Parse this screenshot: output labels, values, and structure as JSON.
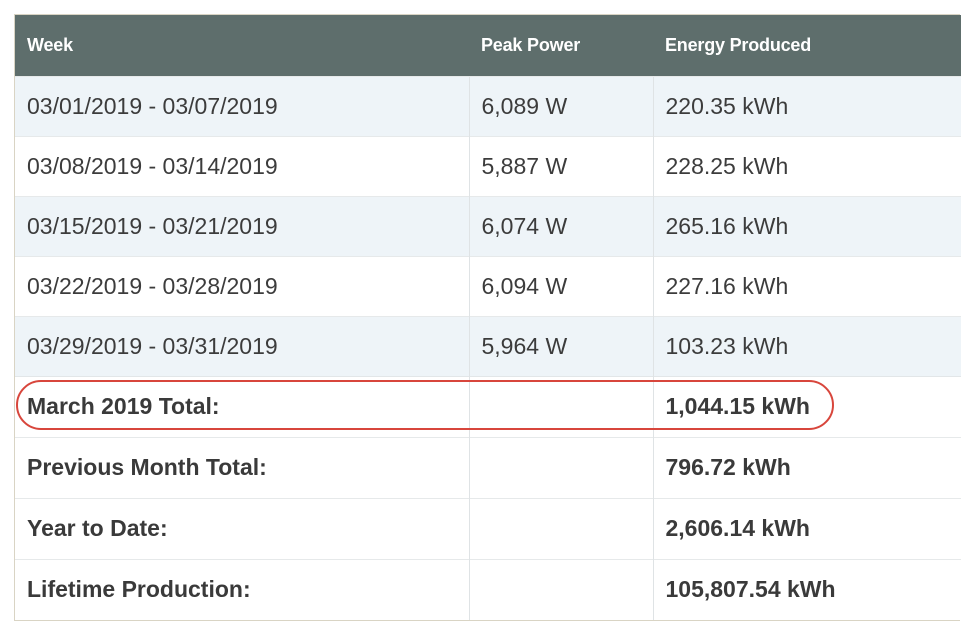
{
  "headers": [
    "Week",
    "Peak Power",
    "Energy Produced"
  ],
  "weeks": [
    {
      "week": "03/01/2019 - 03/07/2019",
      "peak_power": "6,089 W",
      "energy": "220.35 kWh"
    },
    {
      "week": "03/08/2019 - 03/14/2019",
      "peak_power": "5,887 W",
      "energy": "228.25 kWh"
    },
    {
      "week": "03/15/2019 - 03/21/2019",
      "peak_power": "6,074 W",
      "energy": "265.16 kWh"
    },
    {
      "week": "03/22/2019 - 03/28/2019",
      "peak_power": "6,094 W",
      "energy": "227.16 kWh"
    },
    {
      "week": "03/29/2019 - 03/31/2019",
      "peak_power": "5,964 W",
      "energy": "103.23 kWh"
    }
  ],
  "totals": [
    {
      "label": "March 2019 Total:",
      "value": "1,044.15 kWh"
    },
    {
      "label": "Previous Month Total:",
      "value": "796.72 kWh"
    },
    {
      "label": "Year to Date:",
      "value": "2,606.14 kWh"
    },
    {
      "label": "Lifetime Production:",
      "value": "105,807.54 kWh"
    }
  ],
  "colors": {
    "header_bg": "#5e6e6c",
    "row_alt_bg": "#eef4f8",
    "highlight": "#d8463c"
  }
}
